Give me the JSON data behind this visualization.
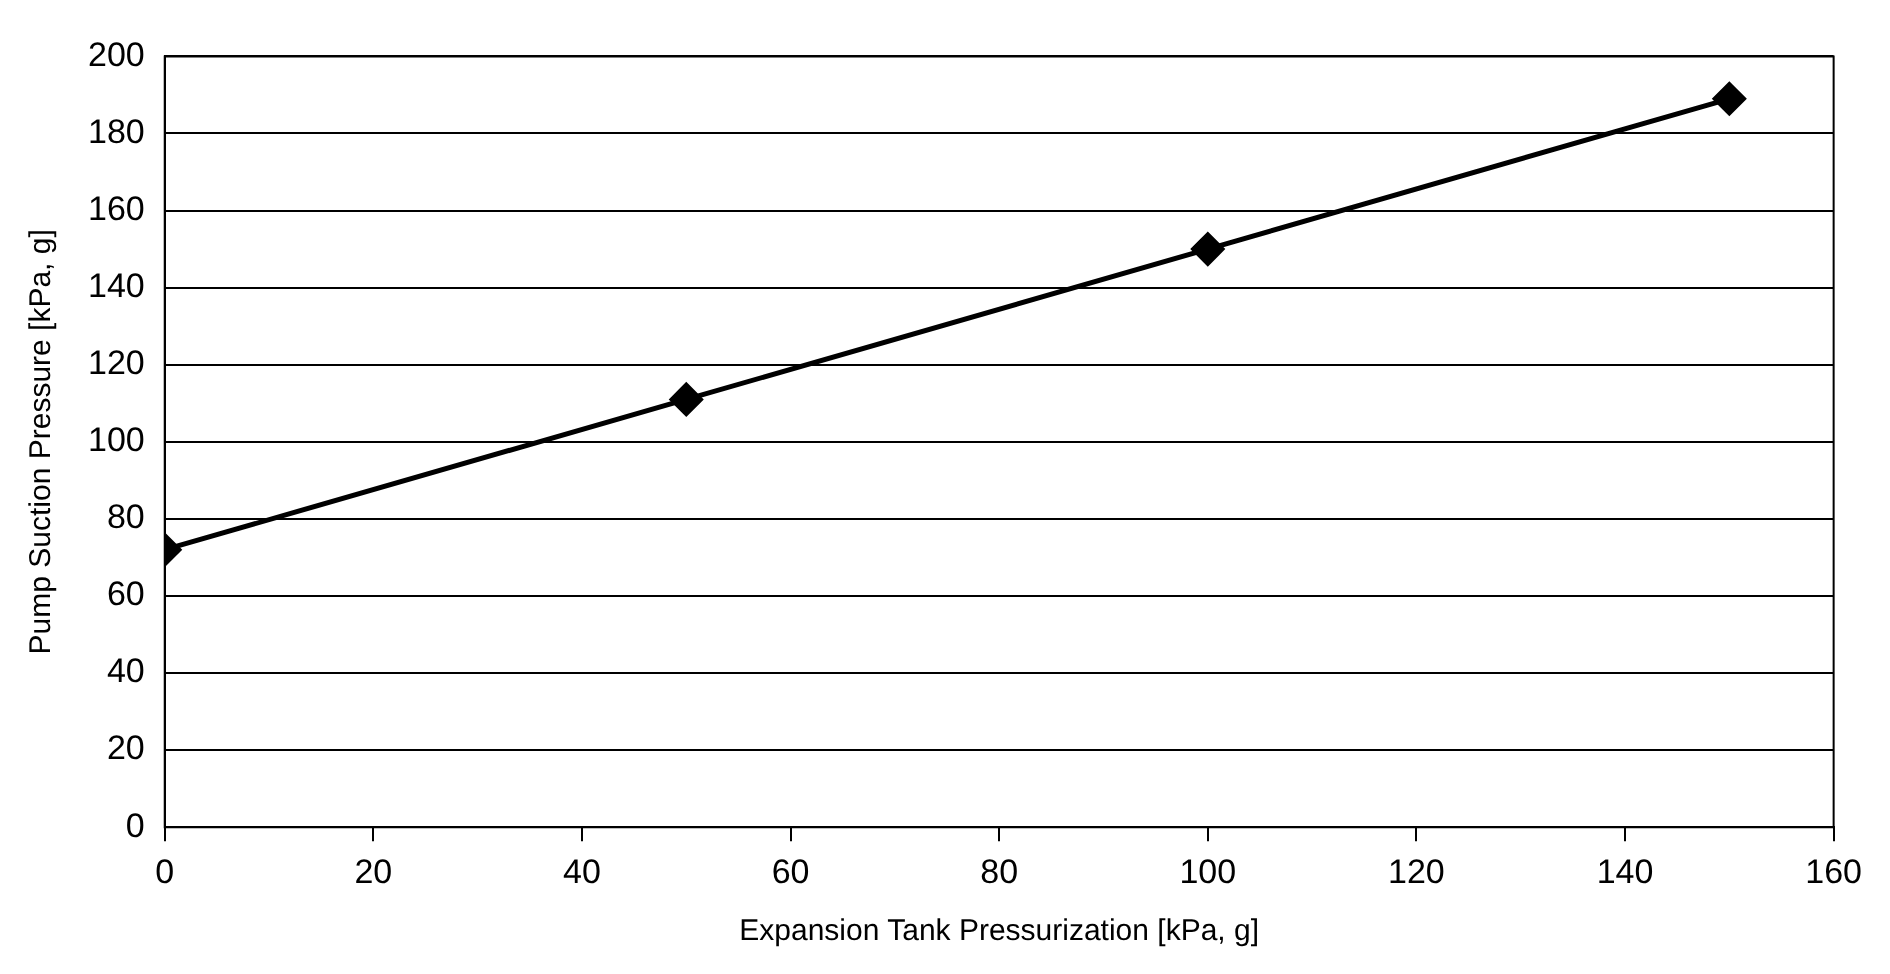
{
  "chart_data": {
    "type": "line",
    "xlabel": "Expansion Tank Pressurization [kPa, g]",
    "ylabel": "Pump Suction Pressure [kPa, g]",
    "x": [
      0,
      50,
      100,
      150
    ],
    "series": [
      {
        "color": "#000000",
        "values": [
          72,
          111,
          150,
          189
        ]
      }
    ],
    "xlim": [
      0,
      160
    ],
    "xticks": [
      0,
      20,
      40,
      60,
      80,
      100,
      120,
      140,
      160
    ],
    "ylim": [
      0,
      200
    ],
    "yticks": [
      0,
      20,
      40,
      60,
      80,
      100,
      120,
      140,
      160,
      180,
      200
    ],
    "grid": "y",
    "legend": false,
    "marker": "diamond",
    "line_style": "solid"
  }
}
